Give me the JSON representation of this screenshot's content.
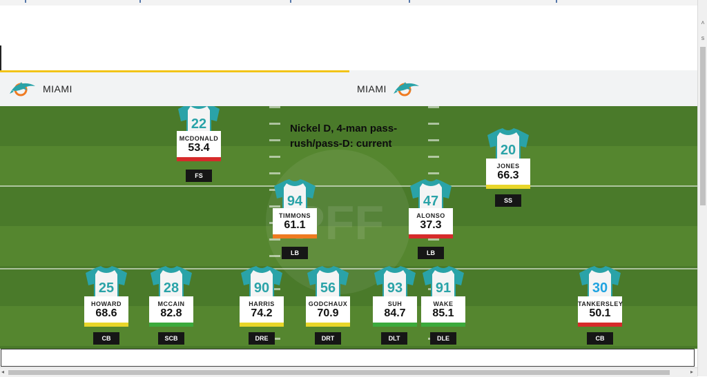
{
  "header": {
    "left_team": "MIAMI",
    "right_team": "MIAMI",
    "accent_color": "#f2c418",
    "logo_icon": "dolphin-logo"
  },
  "scheme": {
    "line1": "Nickel D, 4-man pass-",
    "line2": "rush/pass-D: current"
  },
  "players": [
    {
      "number": "22",
      "name": "MCDONALD",
      "grade": "53.4",
      "position": "FS",
      "grade_color": "#d62b2b",
      "number_color": "#2aa3a8"
    },
    {
      "number": "20",
      "name": "JONES",
      "grade": "66.3",
      "position": "SS",
      "grade_color": "#e8d62a",
      "number_color": "#2aa3a8"
    },
    {
      "number": "94",
      "name": "TIMMONS",
      "grade": "61.1",
      "position": "LB",
      "grade_color": "#ef7b21",
      "number_color": "#2aa3a8"
    },
    {
      "number": "47",
      "name": "ALONSO",
      "grade": "37.3",
      "position": "LB",
      "grade_color": "#d62b2b",
      "number_color": "#2aa3a8"
    },
    {
      "number": "25",
      "name": "HOWARD",
      "grade": "68.6",
      "position": "CB",
      "grade_color": "#e8d62a",
      "number_color": "#2aa3a8"
    },
    {
      "number": "28",
      "name": "MCCAIN",
      "grade": "82.8",
      "position": "SCB",
      "grade_color": "#3caa3c",
      "number_color": "#2aa3a8"
    },
    {
      "number": "90",
      "name": "HARRIS",
      "grade": "74.2",
      "position": "DRE",
      "grade_color": "#e8d62a",
      "number_color": "#2aa3a8"
    },
    {
      "number": "56",
      "name": "GODCHAUX",
      "grade": "70.9",
      "position": "DRT",
      "grade_color": "#e8d62a",
      "number_color": "#2aa3a8"
    },
    {
      "number": "93",
      "name": "SUH",
      "grade": "84.7",
      "position": "DLT",
      "grade_color": "#3caa3c",
      "number_color": "#2aa3a8"
    },
    {
      "number": "91",
      "name": "WAKE",
      "grade": "85.1",
      "position": "DLE",
      "grade_color": "#3caa3c",
      "number_color": "#2aa3a8"
    },
    {
      "number": "30",
      "name": "TANKERSLEY",
      "grade": "50.1",
      "position": "CB",
      "grade_color": "#d62b2b",
      "number_color": "#1fa3e0"
    }
  ],
  "scrollbar_right": {
    "up": "˄",
    "down": "s"
  },
  "scrollbar_bottom": {
    "left": "◂",
    "right": "▸"
  }
}
